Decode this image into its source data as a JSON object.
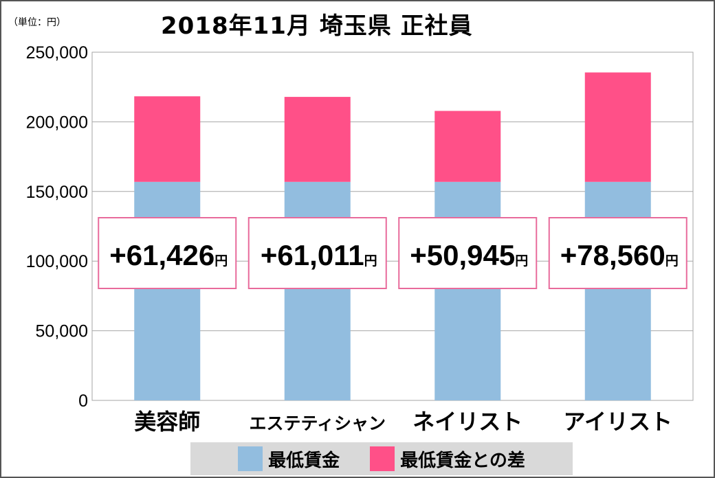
{
  "unit_label": "（単位：円）",
  "chart_data": {
    "type": "bar",
    "stacked": true,
    "title": "2018年11月 埼玉県 正社員",
    "categories": [
      "美容師",
      "エステティシャン",
      "ネイリスト",
      "アイリスト"
    ],
    "series": [
      {
        "name": "最低賃金",
        "values": [
          156900,
          156900,
          156900,
          156900
        ],
        "color": "#92bddf"
      },
      {
        "name": "最低賃金との差",
        "values": [
          61426,
          61011,
          50945,
          78560
        ],
        "color": "#ff5088"
      }
    ],
    "data_labels": [
      "+61,426",
      "+61,011",
      "+50,945",
      "+78,560"
    ],
    "data_label_unit": "円",
    "ylim": [
      0,
      250000
    ],
    "yticks": [
      0,
      50000,
      100000,
      150000,
      200000,
      250000
    ],
    "ytick_labels": [
      "0",
      "50,000",
      "100,000",
      "150,000",
      "200,000",
      "250,000"
    ],
    "grid": true,
    "legend_position": "bottom"
  }
}
